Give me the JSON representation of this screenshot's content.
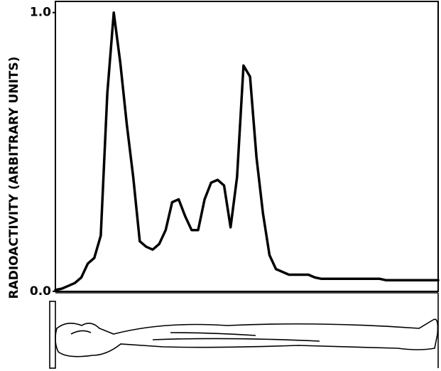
{
  "chart_data": {
    "type": "line",
    "y_label": "RADIOACTIVITY (ARBITRARY UNITS)",
    "ylim": [
      0,
      1.04
    ],
    "yticks": [
      {
        "value": 0,
        "label": "0.0"
      },
      {
        "value": 1,
        "label": "1.0"
      }
    ],
    "color": "#000000",
    "values": [
      0.005,
      0.01,
      0.02,
      0.03,
      0.05,
      0.1,
      0.12,
      0.2,
      0.71,
      1.0,
      0.82,
      0.6,
      0.41,
      0.18,
      0.16,
      0.15,
      0.17,
      0.22,
      0.32,
      0.33,
      0.27,
      0.22,
      0.22,
      0.33,
      0.39,
      0.4,
      0.38,
      0.23,
      0.41,
      0.81,
      0.77,
      0.48,
      0.28,
      0.13,
      0.08,
      0.07,
      0.06,
      0.06,
      0.06,
      0.06,
      0.05,
      0.045,
      0.045,
      0.045,
      0.045,
      0.045,
      0.045,
      0.045,
      0.045,
      0.045,
      0.045,
      0.04,
      0.04,
      0.04,
      0.04,
      0.04,
      0.04,
      0.04,
      0.04,
      0.04
    ]
  }
}
